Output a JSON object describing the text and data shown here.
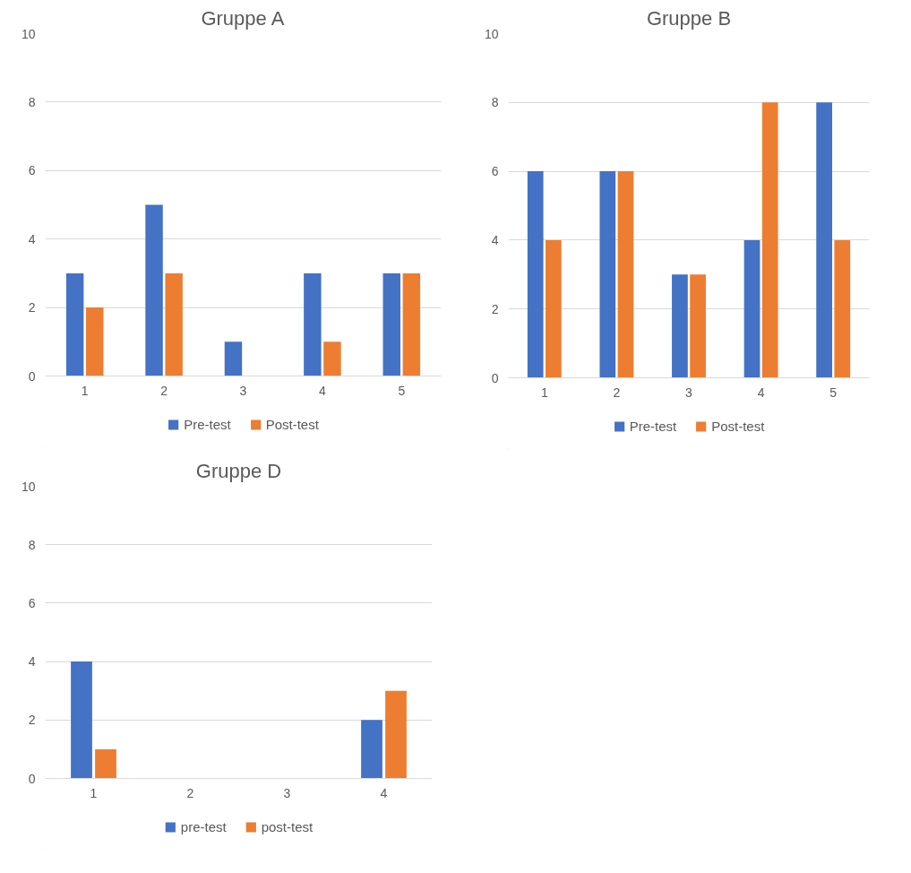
{
  "chart_data": [
    {
      "type": "bar",
      "title": "Gruppe A",
      "categories": [
        "1",
        "2",
        "3",
        "4",
        "5"
      ],
      "series": [
        {
          "name": "Pre-test",
          "color": "#4472c4",
          "values": [
            3,
            5,
            1,
            3,
            3
          ]
        },
        {
          "name": "Post-test",
          "color": "#ed7d31",
          "values": [
            2,
            3,
            0,
            1,
            3
          ]
        }
      ],
      "ylim": [
        0,
        10
      ],
      "yticks": [
        0,
        2,
        4,
        6,
        8,
        10
      ],
      "grid": "y",
      "legend": "bottom"
    },
    {
      "type": "bar",
      "title": "Gruppe B",
      "categories": [
        "1",
        "2",
        "3",
        "4",
        "5"
      ],
      "series": [
        {
          "name": "Pre-test",
          "color": "#4472c4",
          "values": [
            6,
            6,
            3,
            4,
            8
          ]
        },
        {
          "name": "Post-test",
          "color": "#ed7d31",
          "values": [
            4,
            6,
            3,
            8,
            4
          ]
        }
      ],
      "ylim": [
        0,
        10
      ],
      "yticks": [
        0,
        2,
        4,
        6,
        8,
        10
      ],
      "grid": "y",
      "legend": "bottom"
    },
    {
      "type": "bar",
      "title": "Gruppe D",
      "categories": [
        "1",
        "2",
        "3",
        "4"
      ],
      "series": [
        {
          "name": "pre-test",
          "color": "#4472c4",
          "values": [
            4,
            0,
            0,
            2
          ]
        },
        {
          "name": "post-test",
          "color": "#ed7d31",
          "values": [
            1,
            0,
            0,
            3
          ]
        }
      ],
      "ylim": [
        0,
        10
      ],
      "yticks": [
        0,
        2,
        4,
        6,
        8,
        10
      ],
      "grid": "y",
      "legend": "bottom"
    }
  ]
}
